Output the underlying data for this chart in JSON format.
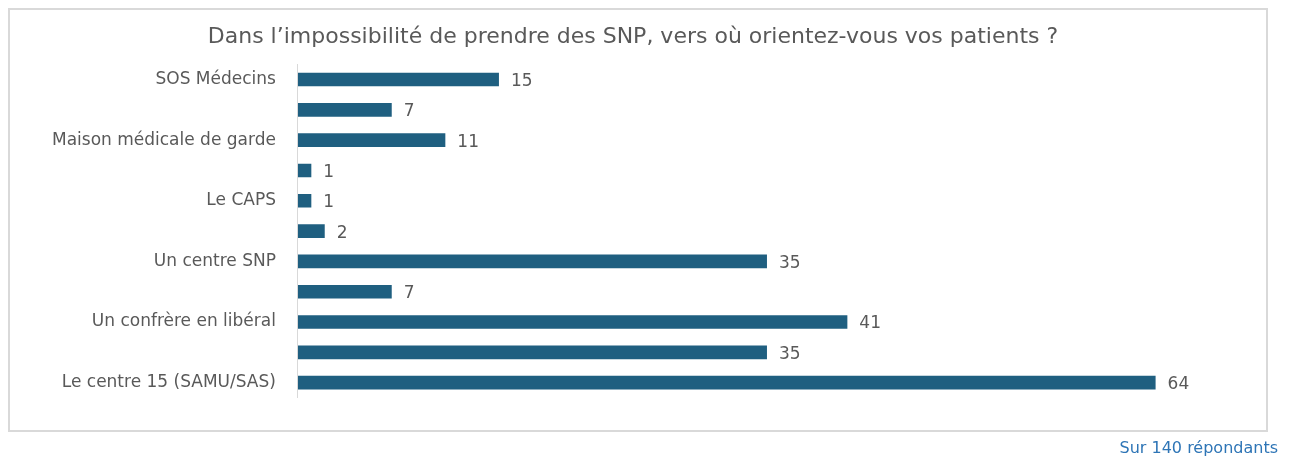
{
  "chart_data": {
    "type": "bar",
    "orientation": "horizontal",
    "title": "Dans l’impossibilité de prendre des SNP, vers où orientez-vous vos patients ?",
    "categories": [
      "SOS Médecins",
      null,
      "Maison médicale de garde",
      null,
      "Le CAPS",
      null,
      "Un centre SNP",
      null,
      "Un confrère en libéral",
      null,
      "Le centre 15 (SAMU/SAS)"
    ],
    "values": [
      15,
      7,
      11,
      1,
      1,
      2,
      35,
      7,
      41,
      35,
      64
    ],
    "color": "#1f5f80",
    "data_labels": true,
    "grid": false,
    "legend": false,
    "tick_labels": "y",
    "annotations": [
      "Sur 140 répondants"
    ]
  }
}
